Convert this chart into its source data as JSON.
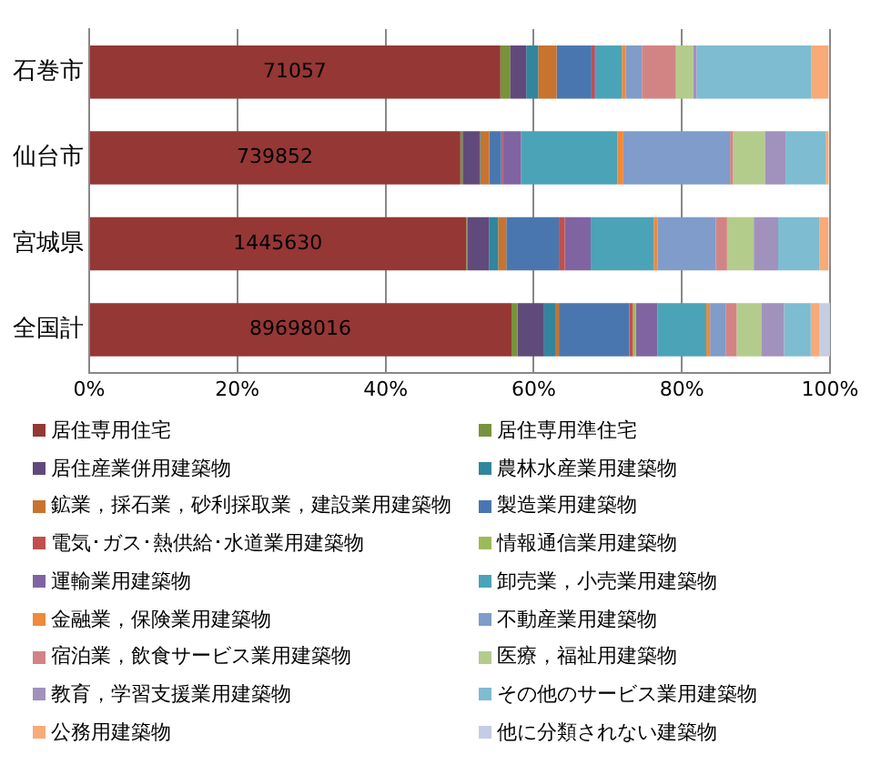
{
  "chart_data": {
    "type": "bar",
    "orientation": "horizontal",
    "stacked": true,
    "categories": [
      "石巻市",
      "仙台市",
      "宮城県",
      "全国計"
    ],
    "xlim": [
      0,
      100
    ],
    "xticks": [
      {
        "value": 0,
        "label": "0%"
      },
      {
        "value": 20,
        "label": "20%"
      },
      {
        "value": 40,
        "label": "40%"
      },
      {
        "value": 60,
        "label": "60%"
      },
      {
        "value": 80,
        "label": "80%"
      },
      {
        "value": 100,
        "label": "100%"
      }
    ],
    "grid": "x",
    "legend": "bottom",
    "annotations": [
      "71057",
      "739852",
      "1445630",
      "89698016"
    ],
    "series": [
      {
        "name": "居住専用住宅",
        "color": "#953735",
        "values": [
          55.5,
          50.1,
          50.9,
          57.0
        ]
      },
      {
        "name": "居住専用準住宅",
        "color": "#77933c",
        "values": [
          1.3,
          0.3,
          0.2,
          0.8
        ]
      },
      {
        "name": "居住産業併用建築物",
        "color": "#604a7b",
        "values": [
          2.2,
          2.3,
          2.9,
          3.6
        ]
      },
      {
        "name": "農林水産業用建築物",
        "color": "#31859c",
        "values": [
          1.6,
          0.1,
          1.2,
          1.5
        ]
      },
      {
        "name": "鉱業，採石業，砂利採取業，建設業用建築物",
        "color": "#c8732e",
        "values": [
          2.5,
          1.2,
          1.1,
          0.5
        ]
      },
      {
        "name": "製造業用建築物",
        "color": "#4a76b0",
        "values": [
          4.7,
          1.6,
          7.1,
          9.5
        ]
      },
      {
        "name": "電気･ガス･熱供給･水道業用建築物",
        "color": "#c0504d",
        "values": [
          0.4,
          0.2,
          0.8,
          0.5
        ]
      },
      {
        "name": "情報通信業用建築物",
        "color": "#9bbb59",
        "values": [
          0,
          0,
          0,
          0.4
        ]
      },
      {
        "name": "運輸業用建築物",
        "color": "#8064a2",
        "values": [
          0.2,
          2.5,
          3.5,
          2.9
        ]
      },
      {
        "name": "卸売業，小売業用建築物",
        "color": "#4ba3b8",
        "values": [
          3.5,
          13.0,
          8.5,
          6.6
        ]
      },
      {
        "name": "金融業，保険業用建築物",
        "color": "#ee8a3c",
        "values": [
          0.5,
          0.8,
          0.5,
          0.5
        ]
      },
      {
        "name": "不動産業用建築物",
        "color": "#7f9ccb",
        "values": [
          2.2,
          14.4,
          7.9,
          2.1
        ]
      },
      {
        "name": "宿泊業，飲食サービス業用建築物",
        "color": "#d28484",
        "values": [
          4.6,
          0.4,
          1.5,
          1.5
        ]
      },
      {
        "name": "医療，福祉用建築物",
        "color": "#b3cc8b",
        "values": [
          2.3,
          4.3,
          3.6,
          3.3
        ]
      },
      {
        "name": "教育，学習支援業用建築物",
        "color": "#a092bd",
        "values": [
          0.5,
          2.8,
          3.3,
          3.1
        ]
      },
      {
        "name": "その他のサービス業用建築物",
        "color": "#7dbcd1",
        "values": [
          15.5,
          5.4,
          5.6,
          3.6
        ]
      },
      {
        "name": "公務用建築物",
        "color": "#f8aa78",
        "values": [
          2.3,
          0.4,
          1.2,
          1.2
        ]
      },
      {
        "name": "他に分類されない建築物",
        "color": "#c4cde4",
        "values": [
          null,
          null,
          null,
          1.4
        ]
      }
    ]
  }
}
